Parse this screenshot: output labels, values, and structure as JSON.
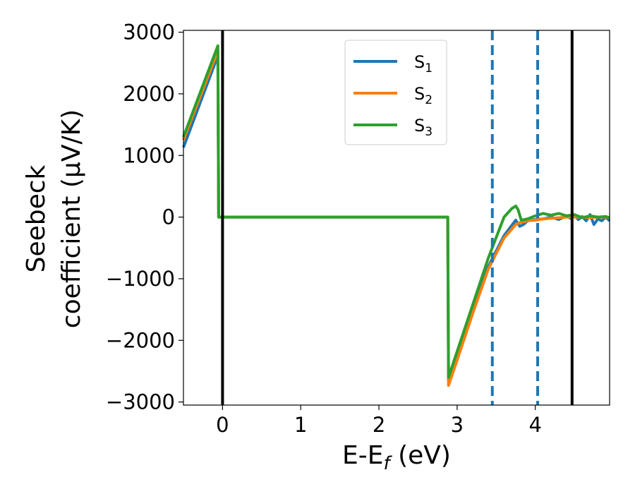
{
  "chart_data": {
    "type": "line",
    "xlabel": {
      "main": "E-E",
      "sub": "f",
      "unit": " (eV)"
    },
    "ylabel": {
      "line1": "Seebeck",
      "line2": "coefficient  (μV/K)"
    },
    "xlim": [
      -0.5,
      4.95
    ],
    "ylim": [
      -3050,
      3030
    ],
    "xticks": [
      0,
      1,
      2,
      3,
      4
    ],
    "xtick_labels": [
      "0",
      "1",
      "2",
      "3",
      "4"
    ],
    "yticks": [
      3000,
      2000,
      1000,
      0,
      -1000,
      -2000,
      -3000
    ],
    "ytick_labels": [
      "3000",
      "2000",
      "1000",
      "0",
      "−1000",
      "−2000",
      "−3000"
    ],
    "grid": false,
    "legend_position": "top-center",
    "series": [
      {
        "name": "S",
        "sub": "1",
        "color": "#1f77b4",
        "x": [
          -0.5,
          -0.06,
          -0.05,
          2.88,
          2.89,
          3.0,
          3.2,
          3.4,
          3.6,
          3.75,
          3.8,
          3.85,
          3.9,
          4.0,
          4.1,
          4.2,
          4.3,
          4.4,
          4.45,
          4.5,
          4.55,
          4.6,
          4.65,
          4.7,
          4.75,
          4.8,
          4.85,
          4.9,
          4.95
        ],
        "y": [
          1130,
          2620,
          0,
          0,
          -2680,
          -2250,
          -1500,
          -800,
          -300,
          -50,
          -150,
          -120,
          -60,
          -40,
          -30,
          0,
          -40,
          20,
          -20,
          30,
          -40,
          10,
          -60,
          40,
          -120,
          -30,
          -60,
          0,
          -60
        ]
      },
      {
        "name": "S",
        "sub": "2",
        "color": "#ff7f0e",
        "x": [
          -0.5,
          -0.06,
          -0.05,
          2.88,
          2.89,
          3.0,
          3.2,
          3.4,
          3.6,
          3.75,
          3.8,
          3.9,
          4.0,
          4.1,
          4.2,
          4.3,
          4.4,
          4.5,
          4.6,
          4.7,
          4.8,
          4.9,
          4.95
        ],
        "y": [
          1250,
          2700,
          0,
          0,
          -2730,
          -2320,
          -1560,
          -840,
          -340,
          -120,
          -90,
          -60,
          -50,
          -30,
          -20,
          -10,
          0,
          0,
          0,
          -10,
          0,
          0,
          -10
        ]
      },
      {
        "name": "S",
        "sub": "3",
        "color": "#2ca02c",
        "x": [
          -0.5,
          -0.06,
          -0.05,
          2.88,
          2.89,
          3.0,
          3.2,
          3.4,
          3.6,
          3.7,
          3.75,
          3.78,
          3.82,
          3.9,
          4.0,
          4.1,
          4.2,
          4.3,
          4.4,
          4.5,
          4.6,
          4.7,
          4.8,
          4.9,
          4.95
        ],
        "y": [
          1300,
          2780,
          0,
          0,
          -2600,
          -2180,
          -1420,
          -660,
          0,
          140,
          180,
          120,
          -50,
          -30,
          20,
          60,
          30,
          60,
          20,
          40,
          -10,
          20,
          0,
          10,
          -10
        ]
      }
    ],
    "vlines": [
      {
        "x": 0.0,
        "style": "solid",
        "color": "#000000"
      },
      {
        "x": 4.47,
        "style": "solid",
        "color": "#000000"
      },
      {
        "x": 3.45,
        "style": "dashed",
        "color": "#1f77b4"
      },
      {
        "x": 4.03,
        "style": "dashed",
        "color": "#1f77b4"
      }
    ]
  }
}
